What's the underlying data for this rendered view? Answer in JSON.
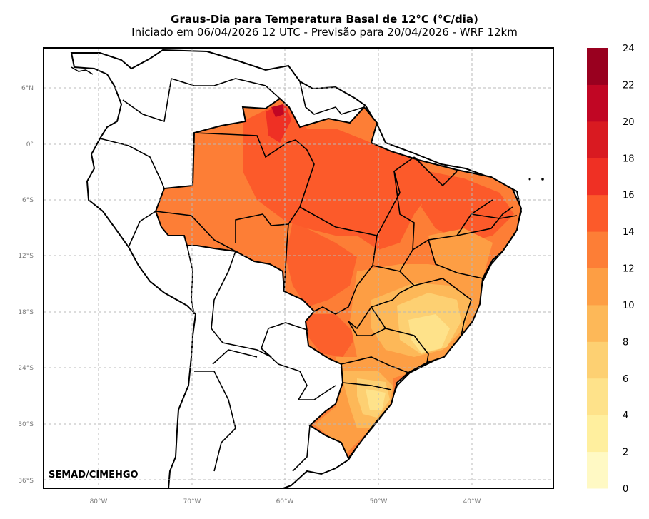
{
  "title": "Graus-Dia para Temperatura Basal de 12°C (°C/dia)",
  "subtitle": "Iniciado em 06/04/2026 12 UTC - Previsão para 20/04/2026 - WRF 12km",
  "credit": "SEMAD/CIMEHGO",
  "axes": {
    "lat_labels": [
      "6°N",
      "0°",
      "6°S",
      "12°S",
      "18°S",
      "24°S",
      "30°S",
      "36°S"
    ],
    "lon_labels": [
      "80°W",
      "70°W",
      "60°W",
      "50°W",
      "40°W"
    ]
  },
  "colorbar": {
    "ticks": [
      "0",
      "2",
      "4",
      "6",
      "8",
      "10",
      "12",
      "14",
      "16",
      "18",
      "20",
      "22",
      "24"
    ],
    "colors": [
      "#fff9c4",
      "#ffef9e",
      "#fee28a",
      "#fdd072",
      "#fdb858",
      "#fd9e44",
      "#fd7e36",
      "#fc5a2a",
      "#ef3024",
      "#d91a21",
      "#c10624",
      "#99001f"
    ]
  },
  "map": {
    "region": "Brazil",
    "field_range_c_per_day": [
      4,
      20
    ],
    "grid": true
  }
}
